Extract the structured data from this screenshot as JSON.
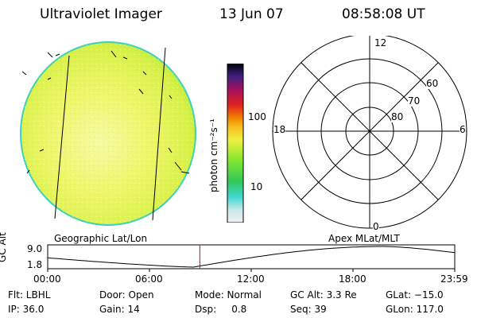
{
  "header": {
    "instrument": "Ultraviolet Imager",
    "date": "13 Jun 07",
    "time": "08:58:08 UT"
  },
  "colorbar": {
    "label": "photon cm⁻²s⁻¹",
    "ticks": [
      "100",
      "10"
    ]
  },
  "polar_plot": {
    "mlt_labels": {
      "top": "12",
      "right": "6",
      "bottom": "0",
      "left": "18"
    },
    "lat_labels": [
      "60",
      "70",
      "80"
    ]
  },
  "image_labels": {
    "left": "Geographic Lat/Lon",
    "right": "Apex MLat/MLT"
  },
  "altitude_plot": {
    "ylabel": "GC Alt",
    "yticks": [
      "9.0",
      "1.8"
    ],
    "xticks": [
      "00:00",
      "06:00",
      "12:00",
      "18:00",
      "23:59"
    ],
    "current_time_hours": 8.97
  },
  "info": [
    [
      "Flt: LBHL",
      "Door: Open",
      "Mode: Normal",
      "GC Alt: 3.3 Re",
      "GLat: −15.0"
    ],
    [
      "IP: 36.0",
      "Gain: 14",
      "Dsp:     0.8",
      "Seq: 39",
      "GLon: 117.0"
    ]
  ]
}
